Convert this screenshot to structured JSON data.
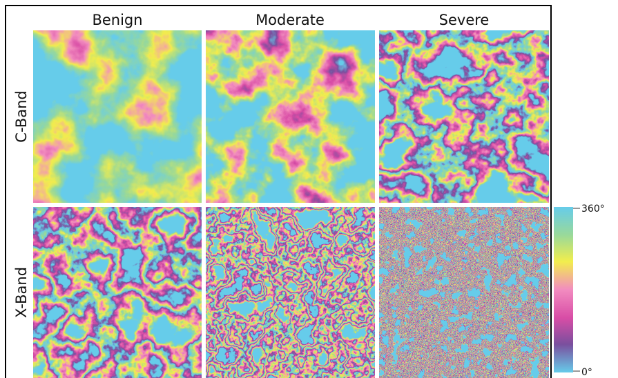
{
  "columns": [
    "Benign",
    "Moderate",
    "Severe"
  ],
  "rows": [
    "C-Band",
    "X-Band"
  ],
  "colorbar": {
    "max": "360°",
    "min": "0°"
  }
}
